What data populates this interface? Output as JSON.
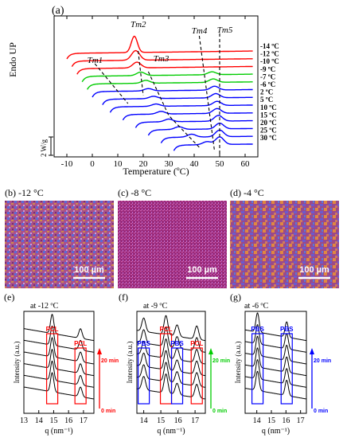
{
  "panel_a": {
    "label": "(a)",
    "ylabel": "Endo UP",
    "xlabel": "Temperature (ºC)",
    "scale_label": "2 W/g",
    "peak_labels": [
      "Tm1",
      "Tm2",
      "Tm3",
      "Tm4",
      "Tm5"
    ]
  },
  "micrographs": [
    {
      "label": "(b) -12 °C",
      "scale": "100 µm"
    },
    {
      "label": "(c) -8 °C",
      "scale": "100 µm"
    },
    {
      "label": "(d) -4 °C",
      "scale": "100 µm"
    }
  ],
  "saxs_panels": [
    {
      "label": "(e)",
      "subtitle": "at -12 ºC",
      "boxes": [
        "PCL",
        "PCL"
      ],
      "time_top": "20 min",
      "time_bottom": "0 min"
    },
    {
      "label": "(f)",
      "subtitle": "at -9 ºC",
      "boxes": [
        "PBS",
        "PCL",
        "PBS",
        "PCL"
      ],
      "time_top": "20 min",
      "time_bottom": "0 min"
    },
    {
      "label": "(g)",
      "subtitle": "at -6 ºC",
      "boxes": [
        "PBS",
        "PBS"
      ],
      "time_top": "20 min",
      "time_bottom": "0 min"
    }
  ],
  "chart_data": [
    {
      "type": "line",
      "xlabel": "Temperature (ºC)",
      "ylabel": "Endo UP",
      "xlim": [
        -15,
        65
      ],
      "xticks": [
        -10,
        0,
        10,
        20,
        30,
        40,
        50,
        60
      ],
      "grid": false,
      "series": [
        {
          "name": "-14 ºC",
          "color": "#ff0000",
          "start": -10,
          "peaks": [
            [
              16.5,
              0.85
            ]
          ]
        },
        {
          "name": "-12 ºC",
          "color": "#ff0000",
          "start": -8,
          "peaks": [
            [
              17,
              0.5
            ]
          ]
        },
        {
          "name": "-10 ºC",
          "color": "#ff0000",
          "start": -6,
          "peaks": [
            [
              17.5,
              0.3
            ]
          ]
        },
        {
          "name": "-9 ºC",
          "color": "#00cc00",
          "start": -4,
          "peaks": [
            [
              19,
              0.18
            ],
            [
              47,
              0.15
            ]
          ]
        },
        {
          "name": "-7 ºC",
          "color": "#00cc00",
          "start": -2,
          "peaks": [
            [
              21,
              0.15
            ],
            [
              47.5,
              0.18
            ]
          ]
        },
        {
          "name": "-6 ºC",
          "color": "#0000ff",
          "start": 0,
          "peaks": [
            [
              22,
              0.12
            ],
            [
              48,
              0.2
            ]
          ]
        },
        {
          "name": "2 ºC",
          "color": "#0000ff",
          "start": 4,
          "peaks": [
            [
              24,
              0.12
            ],
            [
              48.5,
              0.22
            ]
          ]
        },
        {
          "name": "5 ºC",
          "color": "#0000ff",
          "start": 7,
          "peaks": [
            [
              25,
              0.12
            ],
            [
              49,
              0.22
            ]
          ]
        },
        {
          "name": "10 ºC",
          "color": "#0000ff",
          "start": 12,
          "peaks": [
            [
              27,
              0.14
            ],
            [
              49,
              0.25
            ]
          ]
        },
        {
          "name": "15 ºC",
          "color": "#0000ff",
          "start": 17,
          "peaks": [
            [
              30,
              0.14
            ],
            [
              49.5,
              0.3
            ]
          ]
        },
        {
          "name": "20 ºC",
          "color": "#0000ff",
          "start": 22,
          "peaks": [
            [
              34,
              0.14
            ],
            [
              50,
              0.3
            ]
          ]
        },
        {
          "name": "25 ºC",
          "color": "#0000ff",
          "start": 27,
          "peaks": [
            [
              39,
              0.15
            ],
            [
              50,
              0.35
            ]
          ]
        },
        {
          "name": "30 ºC",
          "color": "#0000ff",
          "start": 32,
          "peaks": [
            [
              45,
              0.16
            ],
            [
              50,
              0.4
            ]
          ]
        }
      ]
    },
    {
      "type": "line",
      "title": "(e)",
      "xlabel": "q (nm⁻¹)",
      "ylabel": "Intensity (a.u.)",
      "xlim": [
        13,
        17.7
      ],
      "xticks": [
        13,
        14,
        15,
        16,
        17
      ],
      "series_count": 6,
      "peaks": [
        [
          14.9,
          1.0
        ],
        [
          16.8,
          0.5
        ]
      ]
    },
    {
      "type": "line",
      "title": "(f)",
      "xlabel": "q (nm⁻¹)",
      "ylabel": "Intensity (a.u.)",
      "xlim": [
        13.6,
        17.6
      ],
      "xticks": [
        14,
        15,
        16,
        17
      ],
      "series_count": 6,
      "peaks": [
        [
          14.0,
          0.7
        ],
        [
          15.3,
          1.0
        ],
        [
          15.95,
          0.6
        ],
        [
          17.1,
          0.7
        ]
      ]
    },
    {
      "type": "line",
      "title": "(g)",
      "xlabel": "q (nm⁻¹)",
      "ylabel": "Intensity (a.u.)",
      "xlim": [
        13.2,
        17.4
      ],
      "xticks": [
        14,
        15,
        16,
        17
      ],
      "series_count": 6,
      "peaks": [
        [
          14.05,
          1.0
        ],
        [
          16.05,
          0.8
        ]
      ]
    }
  ]
}
